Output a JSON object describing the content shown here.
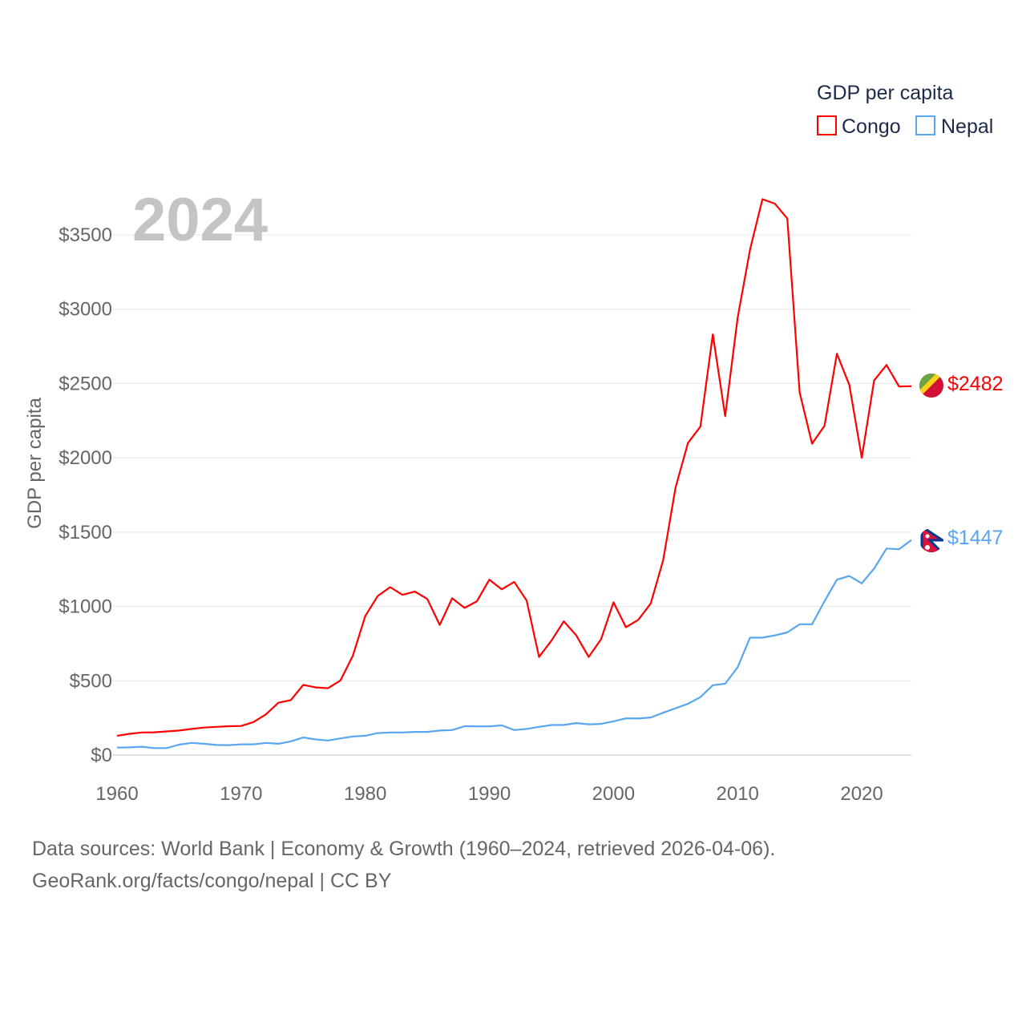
{
  "chart_data": {
    "type": "line",
    "title": "",
    "year_label": "2024",
    "xlabel": "",
    "ylabel": "GDP per capita",
    "xlim": [
      1960,
      2024
    ],
    "ylim": [
      0,
      3500
    ],
    "x_ticks": [
      "1960",
      "1970",
      "1980",
      "1990",
      "2000",
      "2010",
      "2020"
    ],
    "y_ticks": [
      "$0",
      "$500",
      "$1000",
      "$1500",
      "$2000",
      "$2500",
      "$3000",
      "$3500"
    ],
    "grid": true,
    "legend": {
      "title": "GDP per capita",
      "placement": "top-right"
    },
    "x": [
      1960,
      1961,
      1962,
      1963,
      1964,
      1965,
      1966,
      1967,
      1968,
      1969,
      1970,
      1971,
      1972,
      1973,
      1974,
      1975,
      1976,
      1977,
      1978,
      1979,
      1980,
      1981,
      1982,
      1983,
      1984,
      1985,
      1986,
      1987,
      1988,
      1989,
      1990,
      1991,
      1992,
      1993,
      1994,
      1995,
      1996,
      1997,
      1998,
      1999,
      2000,
      2001,
      2002,
      2003,
      2004,
      2005,
      2006,
      2007,
      2008,
      2009,
      2010,
      2011,
      2012,
      2013,
      2014,
      2015,
      2016,
      2017,
      2018,
      2019,
      2020,
      2021,
      2022,
      2023,
      2024
    ],
    "series": [
      {
        "name": "Congo",
        "color": "#ff0000",
        "end_label": "$2482",
        "values": [
          130,
          143,
          152,
          153,
          159,
          165,
          176,
          185,
          190,
          194,
          196,
          222,
          274,
          352,
          370,
          472,
          455,
          450,
          502,
          668,
          935,
          1070,
          1130,
          1078,
          1100,
          1050,
          876,
          1055,
          990,
          1035,
          1180,
          1115,
          1165,
          1040,
          660,
          770,
          900,
          805,
          660,
          780,
          1028,
          860,
          910,
          1020,
          1310,
          1800,
          2100,
          2210,
          2830,
          2280,
          2940,
          3400,
          3740,
          3710,
          3610,
          2440,
          2095,
          2215,
          2700,
          2490,
          2000,
          2520,
          2625,
          2480,
          2482
        ]
      },
      {
        "name": "Nepal",
        "color": "#5aa5f0",
        "end_label": "$1447",
        "values": [
          50,
          52,
          56,
          47,
          47,
          70,
          82,
          76,
          68,
          67,
          72,
          72,
          82,
          76,
          92,
          118,
          105,
          98,
          112,
          125,
          130,
          148,
          152,
          152,
          156,
          156,
          165,
          168,
          194,
          193,
          193,
          200,
          168,
          176,
          190,
          202,
          203,
          215,
          207,
          210,
          227,
          247,
          246,
          253,
          285,
          315,
          345,
          390,
          470,
          480,
          590,
          790,
          790,
          805,
          825,
          880,
          880,
          1035,
          1180,
          1205,
          1155,
          1255,
          1390,
          1385,
          1447
        ]
      }
    ]
  },
  "footer": {
    "line1": "Data sources: World Bank | Economy & Growth (1960–2024, retrieved 2026-04-06).",
    "line2": "GeoRank.org/facts/congo/nepal | CC BY"
  }
}
